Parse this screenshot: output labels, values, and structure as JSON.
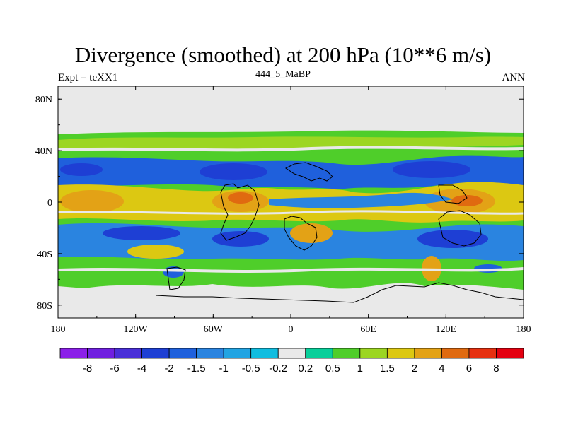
{
  "chart_data": {
    "type": "heatmap",
    "title": "Divergence (smoothed) at 200 hPa (10**6 m/s)",
    "left_string": "Expt = teXX1",
    "center_string": "444_5_MaBP",
    "right_string": "ANN",
    "x_axis": {
      "range": [
        -180,
        180
      ],
      "tick_values": [
        -180,
        -120,
        -60,
        0,
        60,
        120,
        180
      ],
      "tick_labels": [
        "180",
        "120W",
        "60W",
        "0",
        "60E",
        "120E",
        "180"
      ]
    },
    "y_axis": {
      "range": [
        -90,
        90
      ],
      "tick_values": [
        80,
        40,
        0,
        -40,
        -80
      ],
      "tick_labels": [
        "80N",
        "40N",
        "0",
        "40S",
        "80S"
      ]
    },
    "colorbar": {
      "orientation": "horizontal",
      "levels": [
        "-8",
        "-6",
        "-4",
        "-2",
        "-1.5",
        "-1",
        "-0.5",
        "-0.2",
        "0.2",
        "0.5",
        "1",
        "1.5",
        "2",
        "4",
        "6",
        "8"
      ],
      "colors": [
        "#8b1fe8",
        "#7020e0",
        "#4a2fd8",
        "#1e3fd4",
        "#1f60dc",
        "#2a84e0",
        "#22a4e2",
        "#10bde0",
        "#e9e9e9",
        "#08cf9a",
        "#4fce2a",
        "#9cd622",
        "#dcc812",
        "#e3a216",
        "#e06a10",
        "#e63010",
        "#e40010"
      ]
    }
  }
}
